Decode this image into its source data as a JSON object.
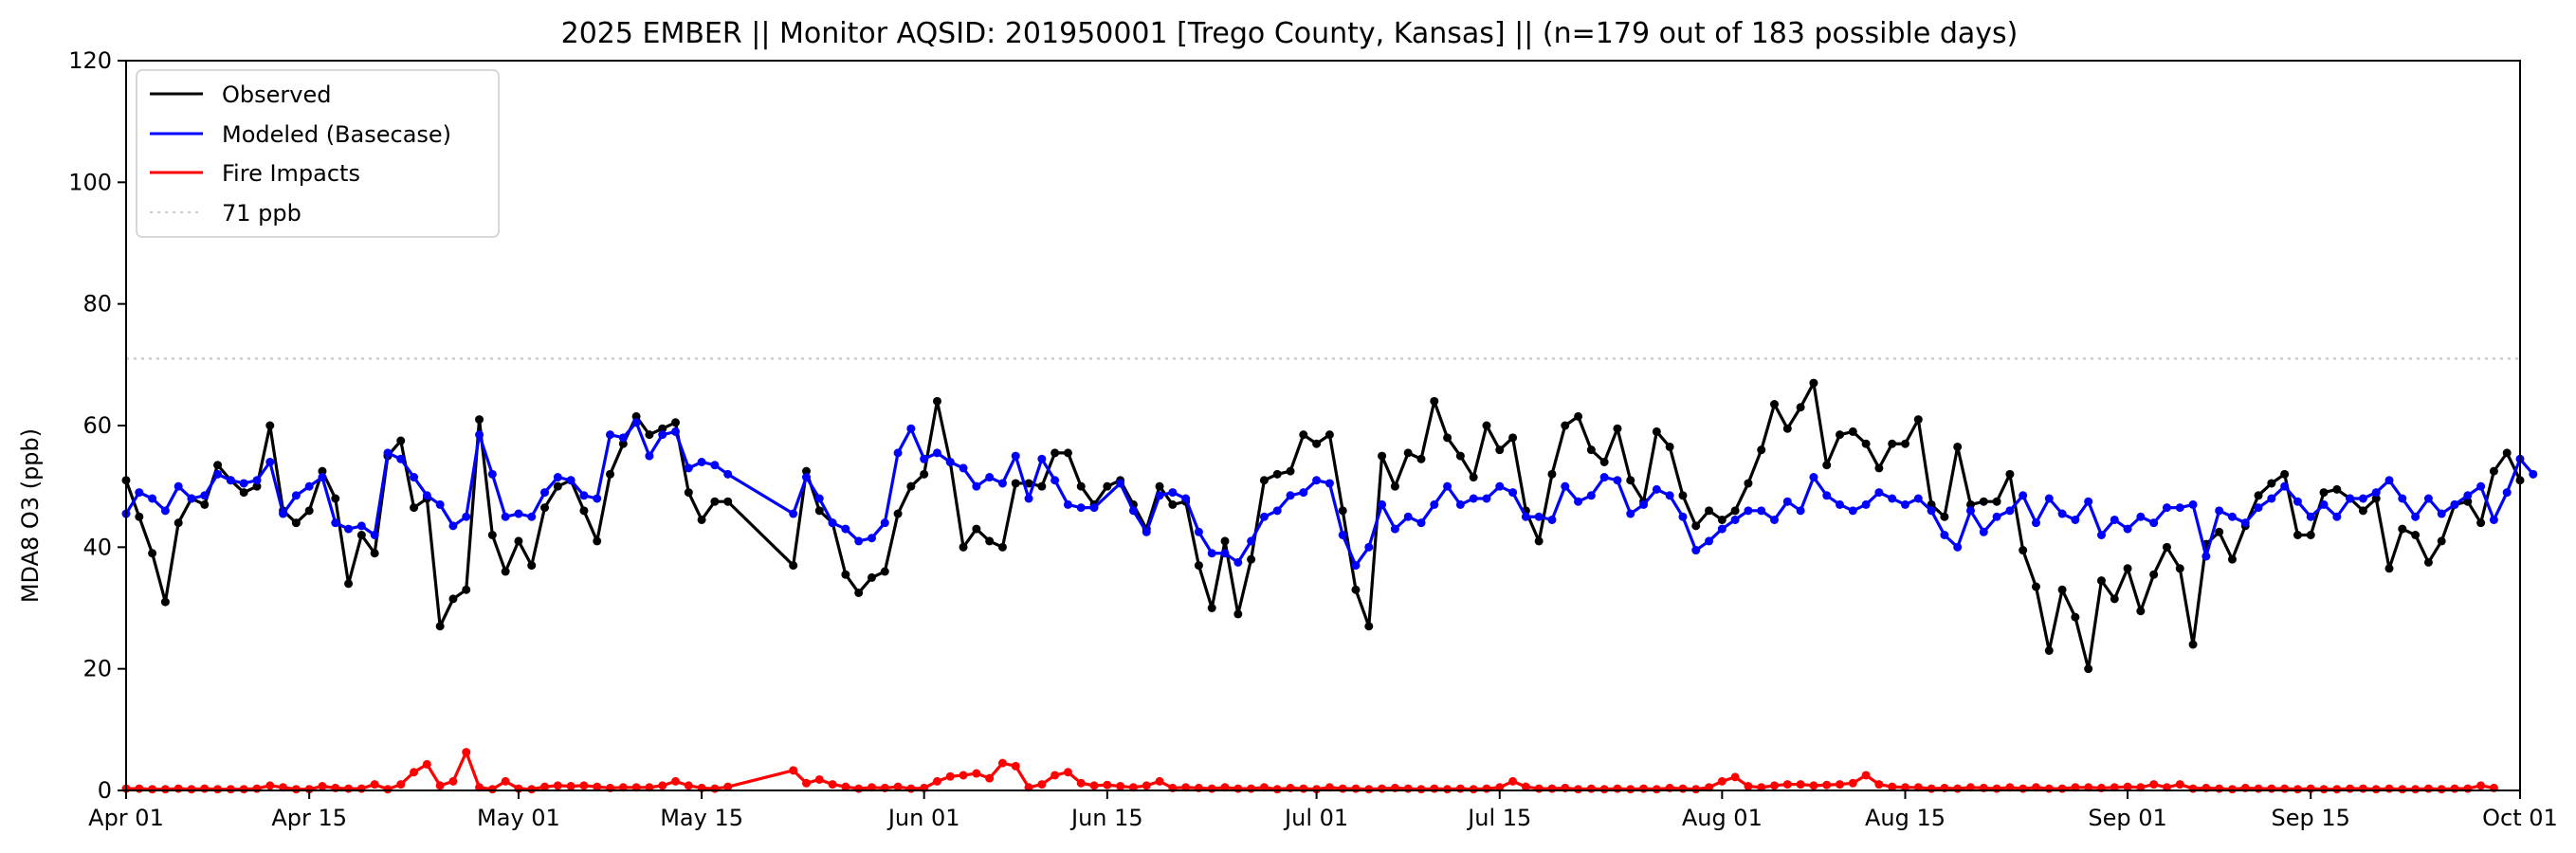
{
  "chart_data": {
    "type": "line",
    "title": "2025 EMBER || Monitor AQSID: 201950001 [Trego County, Kansas] || (n=179 out of 183 possible days)",
    "xlabel": "",
    "ylabel": "MDA8 O3 (ppb)",
    "ylim": [
      0,
      120
    ],
    "yticks": [
      "0",
      "20",
      "40",
      "60",
      "80",
      "100",
      "120"
    ],
    "x_start": "2025-04-01",
    "x_end": "2025-10-01",
    "xticks": [
      {
        "label": "Apr 01",
        "day": 0
      },
      {
        "label": "Apr 15",
        "day": 14
      },
      {
        "label": "May 01",
        "day": 30
      },
      {
        "label": "May 15",
        "day": 44
      },
      {
        "label": "Jun 01",
        "day": 61
      },
      {
        "label": "Jun 15",
        "day": 75
      },
      {
        "label": "Jul 01",
        "day": 91
      },
      {
        "label": "Jul 15",
        "day": 105
      },
      {
        "label": "Aug 01",
        "day": 122
      },
      {
        "label": "Aug 15",
        "day": 136
      },
      {
        "label": "Sep 01",
        "day": 153
      },
      {
        "label": "Sep 15",
        "day": 167
      },
      {
        "label": "Oct 01",
        "day": 183
      }
    ],
    "missing_days": [
      47,
      48,
      49,
      50
    ],
    "threshold": {
      "name": "71 ppb",
      "value": 71,
      "color": "#cccccc"
    },
    "legend_position": "upper-left",
    "series": [
      {
        "name": "Observed",
        "color": "#000000",
        "values": [
          51,
          45,
          39,
          31,
          44,
          48,
          47,
          53.5,
          51,
          49,
          50,
          60,
          46,
          44,
          46,
          52.5,
          48,
          34,
          42,
          39,
          55,
          57.5,
          46.5,
          48,
          27,
          31.5,
          33,
          61,
          42,
          36,
          41,
          37,
          46.5,
          50,
          51,
          46,
          41,
          52,
          57,
          61.5,
          58.5,
          59.5,
          60.5,
          49,
          44.5,
          47.5,
          47.5,
          null,
          null,
          null,
          null,
          37,
          52.5,
          46,
          44,
          35.5,
          32.5,
          35,
          36,
          45.5,
          50,
          52,
          64,
          54,
          40,
          43,
          41,
          40,
          50.5,
          50.5,
          50,
          55.5,
          55.5,
          50,
          47,
          50,
          51,
          47,
          43,
          50,
          47,
          47.5,
          37,
          30,
          41,
          29,
          38,
          51,
          52,
          52.5,
          58.5,
          57,
          58.5,
          46,
          33,
          27,
          55,
          50,
          55.5,
          54.5,
          64,
          58,
          55,
          51.5,
          60,
          56,
          58,
          46,
          41,
          52,
          60,
          61.5,
          56,
          54,
          59.5,
          51,
          47.5,
          59,
          56.5,
          48.5,
          43.5,
          46,
          44.5,
          46,
          50.5,
          56,
          63.5,
          59.5,
          63,
          67,
          53.5,
          58.5,
          59,
          57,
          53,
          57,
          57,
          61,
          47,
          45,
          56.5,
          47,
          47.5,
          47.5,
          52,
          39.5,
          33.5,
          23,
          33,
          28.5,
          20,
          34.5,
          31.5,
          36.5,
          29.5,
          35.5,
          40,
          36.5,
          24,
          40.5,
          42.5,
          38,
          43.5,
          48.5,
          50.5,
          52,
          42,
          42,
          49,
          49.5,
          48,
          46,
          48,
          36.5,
          43,
          42,
          37.5,
          41,
          47,
          47.5,
          44,
          52.5,
          55.5,
          51
        ]
      },
      {
        "name": "Modeled (Basecase)",
        "color": "#0000ff",
        "values": [
          45.5,
          49,
          48,
          46,
          50,
          48,
          48.5,
          52,
          51,
          50.5,
          51,
          54,
          45.5,
          48.5,
          50,
          51.5,
          44,
          43,
          43.5,
          42,
          55.5,
          54.5,
          51.5,
          48.5,
          47,
          43.5,
          45,
          58.5,
          52,
          45,
          45.5,
          45,
          49,
          51.5,
          51,
          48.5,
          48,
          58.5,
          58,
          60.5,
          55,
          58.5,
          59,
          53,
          54,
          53.5,
          52,
          null,
          null,
          null,
          null,
          45.5,
          51.5,
          48,
          44,
          43,
          41,
          41.5,
          44,
          55.5,
          59.5,
          54.5,
          55.5,
          54,
          53,
          50,
          51.5,
          50.5,
          55,
          48,
          54.5,
          51,
          47,
          46.5,
          46.5,
          null,
          50.5,
          46,
          42.5,
          48.5,
          49,
          48,
          42.5,
          39,
          39,
          37.5,
          41,
          45,
          46,
          48.5,
          49,
          51,
          50.5,
          42,
          37,
          40,
          47,
          43,
          45,
          44,
          47,
          50,
          47,
          48,
          48,
          50,
          49,
          45,
          45,
          44.5,
          50,
          47.5,
          48.5,
          51.5,
          51,
          45.5,
          47,
          49.5,
          48.5,
          45,
          39.5,
          41,
          43,
          44.5,
          46,
          46,
          44.5,
          47.5,
          46,
          51.5,
          48.5,
          47,
          46,
          47,
          49,
          48,
          47,
          48,
          46,
          42,
          40,
          46,
          42.5,
          45,
          46,
          48.5,
          44,
          48,
          45.5,
          44.5,
          47.5,
          42,
          44.5,
          43,
          45,
          44,
          46.5,
          46.5,
          47,
          38.5,
          46,
          45,
          44,
          46.5,
          48,
          50,
          47.5,
          45,
          47,
          45,
          48,
          48,
          49,
          51,
          48,
          45,
          48,
          45.5,
          47,
          48.5,
          50,
          44.5,
          49,
          54.5,
          52
        ]
      },
      {
        "name": "Fire Impacts",
        "color": "#ff0000",
        "values": [
          0.3,
          0.3,
          0.2,
          0.2,
          0.3,
          0.2,
          0.3,
          0.2,
          0.2,
          0.2,
          0.3,
          0.8,
          0.5,
          0.2,
          0.2,
          0.7,
          0.4,
          0.3,
          0.3,
          1.0,
          0.2,
          1.0,
          3.0,
          4.3,
          0.8,
          1.5,
          6.3,
          0.5,
          0.2,
          1.5,
          0.3,
          0.2,
          0.6,
          0.8,
          0.7,
          0.8,
          0.6,
          0.4,
          0.5,
          0.5,
          0.5,
          0.8,
          1.5,
          0.8,
          0.4,
          0.3,
          0.6,
          null,
          null,
          null,
          null,
          3.3,
          1.2,
          1.8,
          1.0,
          0.6,
          0.3,
          0.5,
          0.4,
          0.6,
          0.3,
          0.4,
          1.5,
          2.3,
          2.5,
          2.8,
          2.0,
          4.5,
          4.0,
          0.5,
          1.0,
          2.5,
          3.0,
          1.2,
          0.8,
          0.9,
          0.7,
          0.5,
          0.8,
          1.5,
          0.4,
          0.5,
          0.4,
          0.3,
          0.5,
          0.3,
          0.3,
          0.5,
          0.2,
          0.4,
          0.3,
          0.2,
          0.5,
          0.3,
          0.3,
          0.2,
          0.3,
          0.4,
          0.3,
          0.2,
          0.3,
          0.2,
          0.3,
          0.2,
          0.3,
          0.5,
          1.5,
          0.6,
          0.3,
          0.3,
          0.4,
          0.2,
          0.3,
          0.2,
          0.3,
          0.2,
          0.3,
          0.2,
          0.4,
          0.3,
          0.2,
          0.5,
          1.5,
          2.2,
          0.7,
          0.5,
          0.8,
          1.0,
          1.0,
          0.8,
          0.9,
          1.0,
          1.2,
          2.5,
          1.0,
          0.6,
          0.5,
          0.5,
          0.3,
          0.4,
          0.3,
          0.5,
          0.4,
          0.3,
          0.5,
          0.3,
          0.5,
          0.3,
          0.3,
          0.5,
          0.5,
          0.4,
          0.5,
          0.6,
          0.5,
          1.0,
          0.5,
          1.0,
          0.3,
          0.4,
          0.3,
          0.2,
          0.4,
          0.3,
          0.3,
          0.3,
          0.2,
          0.3,
          0.2,
          0.2,
          0.3,
          0.3,
          0.2,
          0.3,
          0.2,
          0.2,
          0.3,
          0.2,
          0.3,
          0.3,
          0.8,
          0.4
        ]
      }
    ]
  }
}
